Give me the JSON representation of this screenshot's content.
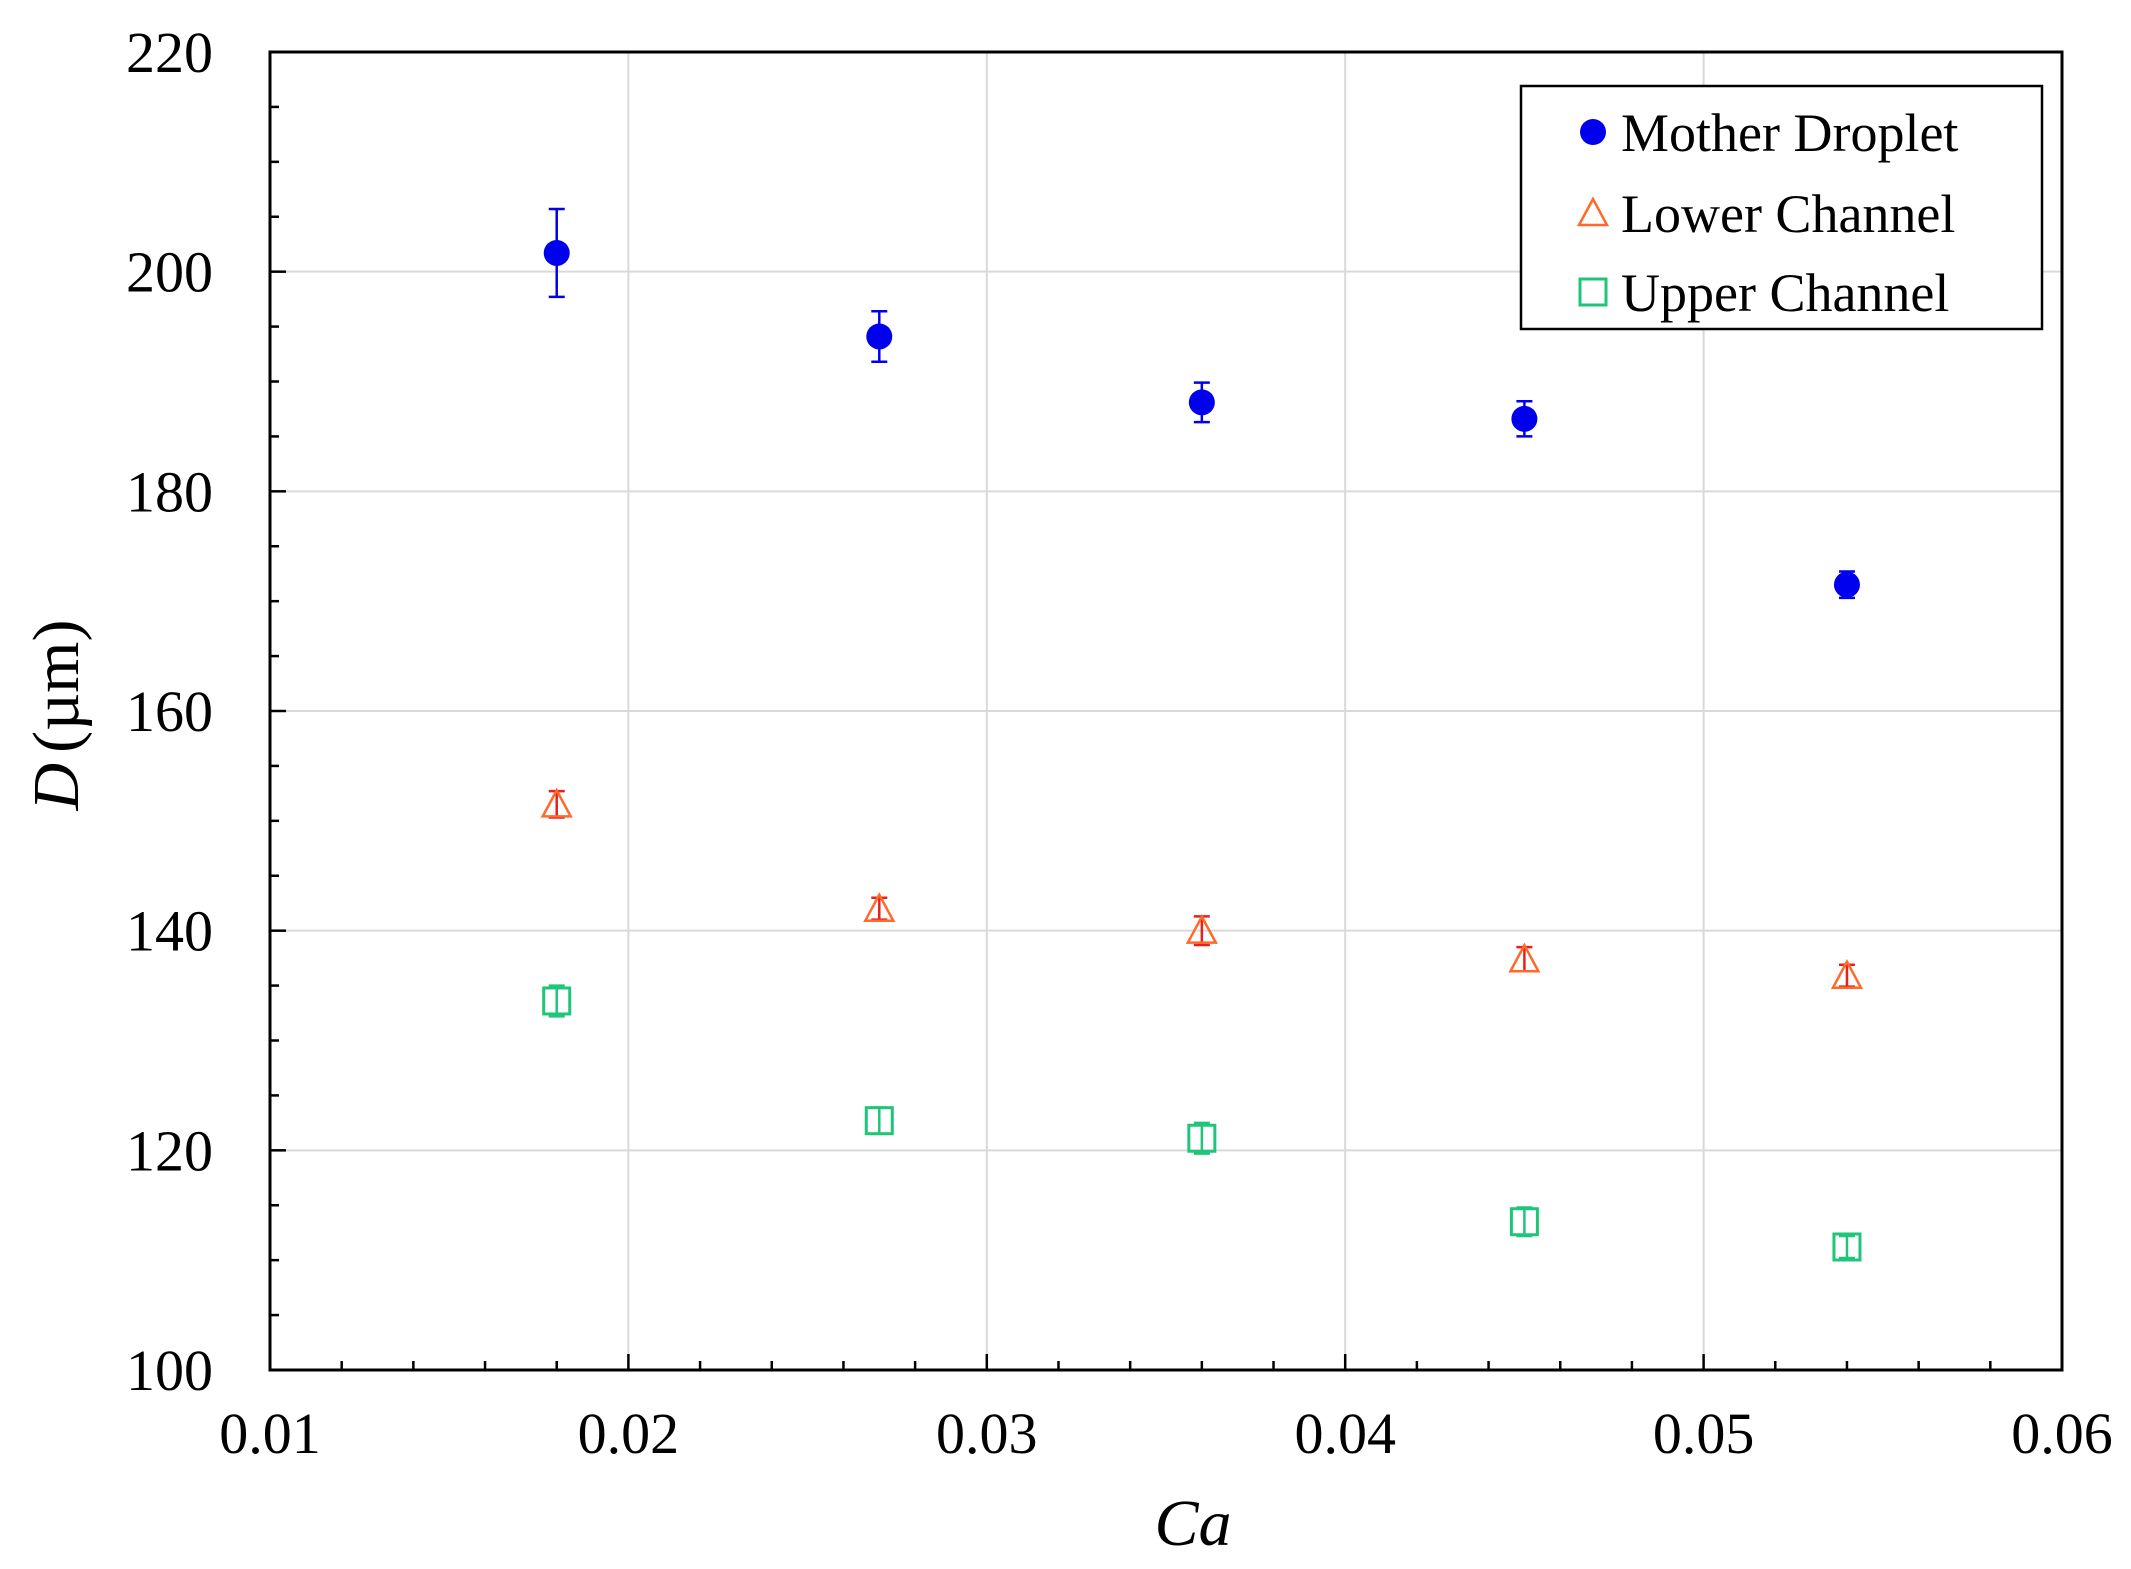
{
  "chart_data": {
    "type": "scatter",
    "xlabel": "Ca",
    "ylabel_italic": "D",
    "ylabel_unit": "(µm)",
    "xlim": [
      0.01,
      0.06
    ],
    "ylim": [
      100,
      220
    ],
    "x_ticks": [
      0.01,
      0.02,
      0.03,
      0.04,
      0.05,
      0.06
    ],
    "x_tick_labels": [
      "0.01",
      "0.02",
      "0.03",
      "0.04",
      "0.05",
      "0.06"
    ],
    "x_minor_step": 0.002,
    "y_ticks": [
      100,
      120,
      140,
      160,
      180,
      200,
      220
    ],
    "y_tick_labels": [
      "100",
      "120",
      "140",
      "160",
      "180",
      "200",
      "220"
    ],
    "y_minor_step": 5,
    "grid": true,
    "legend_position": "top-right",
    "series": [
      {
        "name": "Mother Droplet",
        "marker": "filled-circle",
        "color": "#0000ee",
        "x": [
          0.018,
          0.027,
          0.036,
          0.045,
          0.054
        ],
        "y": [
          201.7,
          194.1,
          188.1,
          186.6,
          171.5
        ],
        "err": [
          4.0,
          2.3,
          1.8,
          1.6,
          1.2
        ]
      },
      {
        "name": "Lower Channel",
        "marker": "open-triangle",
        "color": "#ff6a2a",
        "errcolor": "#e8201c",
        "x": [
          0.018,
          0.027,
          0.036,
          0.045,
          0.054
        ],
        "y": [
          151.5,
          142.0,
          140.0,
          137.4,
          135.9
        ],
        "err": [
          1.2,
          1.0,
          1.3,
          1.1,
          1.0
        ]
      },
      {
        "name": "Upper Channel",
        "marker": "open-square",
        "color": "#1fc67a",
        "x": [
          0.018,
          0.027,
          0.036,
          0.045,
          0.054
        ],
        "y": [
          133.6,
          122.7,
          121.1,
          113.5,
          111.2
        ],
        "err": [
          1.4,
          1.2,
          1.4,
          1.3,
          1.0
        ]
      }
    ]
  }
}
